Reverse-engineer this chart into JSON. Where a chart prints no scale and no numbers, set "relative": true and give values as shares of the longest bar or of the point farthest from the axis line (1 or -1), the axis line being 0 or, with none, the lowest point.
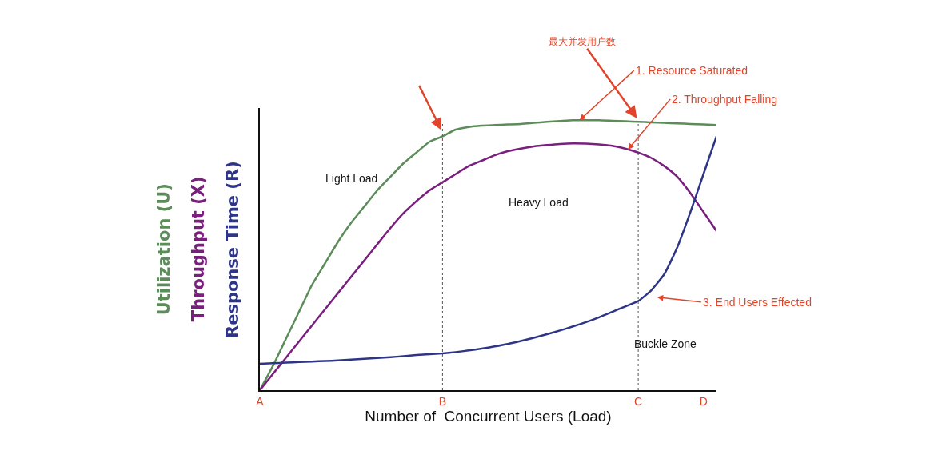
{
  "chart_data": {
    "type": "line",
    "relative": true,
    "xlabel": "Number of  Concurrent Users (Load)",
    "categories": [
      "A",
      null,
      null,
      null,
      null,
      null,
      null,
      null,
      null,
      null,
      null,
      null,
      null,
      null,
      "B",
      null,
      null,
      null,
      null,
      null,
      null,
      null,
      null,
      null,
      null,
      null,
      null,
      null,
      null,
      "C",
      null,
      null,
      null,
      null,
      "D",
      null
    ],
    "series": [
      {
        "name": "Utilization (U)",
        "color": "#5b8c5a",
        "values": [
          0,
          0.09,
          0.19,
          0.29,
          0.39,
          0.47,
          0.55,
          0.62,
          0.68,
          0.74,
          0.79,
          0.84,
          0.88,
          0.92,
          0.94,
          0.965,
          0.975,
          0.98,
          0.982,
          0.984,
          0.986,
          0.99,
          0.994,
          0.997,
          1.0,
          1.0,
          1.0,
          0.998,
          0.996,
          0.994,
          0.992,
          0.99,
          0.988,
          0.986,
          0.984,
          0.982
        ]
      },
      {
        "name": "Throughput (X)",
        "color": "#7b1f7f",
        "values": [
          0,
          0.06,
          0.12,
          0.18,
          0.24,
          0.3,
          0.36,
          0.42,
          0.48,
          0.54,
          0.6,
          0.655,
          0.7,
          0.74,
          0.77,
          0.8,
          0.83,
          0.85,
          0.87,
          0.885,
          0.895,
          0.903,
          0.908,
          0.912,
          0.914,
          0.913,
          0.91,
          0.905,
          0.895,
          0.88,
          0.86,
          0.83,
          0.79,
          0.73,
          0.66,
          0.59
        ]
      },
      {
        "name": "Response Time (R)",
        "color": "#2e3586",
        "values": [
          0.098,
          0.1,
          0.102,
          0.104,
          0.106,
          0.108,
          0.11,
          0.113,
          0.116,
          0.119,
          0.122,
          0.126,
          0.13,
          0.133,
          0.136,
          0.141,
          0.147,
          0.154,
          0.162,
          0.171,
          0.182,
          0.194,
          0.207,
          0.221,
          0.236,
          0.252,
          0.27,
          0.29,
          0.31,
          0.33,
          0.37,
          0.43,
          0.53,
          0.66,
          0.8,
          0.94
        ]
      }
    ],
    "ref_lines": [
      {
        "axis": "x",
        "value": "B",
        "color": "#555555",
        "line_style": "dotted"
      },
      {
        "axis": "x",
        "value": "C",
        "color": "#555555",
        "line_style": "dotted"
      }
    ],
    "annotations": [
      {
        "text": "最大并发用户数",
        "x": "C",
        "y": 1.0
      },
      "1. Resource Saturated",
      "2. Throughput Falling",
      "3. End Users Effected",
      "Light Load",
      "Heavy Load",
      "Buckle Zone"
    ],
    "legend": false,
    "marker": "none",
    "line_style": "solid"
  }
}
